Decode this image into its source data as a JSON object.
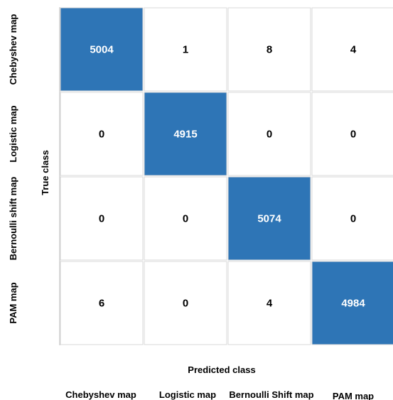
{
  "chart_data": {
    "type": "heatmap",
    "title": "",
    "xlabel": "Predicted class",
    "ylabel": "True class",
    "row_labels": [
      "Chebyshev map",
      "Logistic map",
      "Bernoulli shift map",
      "PAM map"
    ],
    "col_labels": [
      "Chebyshev map",
      "Logistic map",
      "Bernoulli Shift map",
      "PAM map"
    ],
    "values": [
      [
        5004,
        1,
        8,
        4
      ],
      [
        0,
        4915,
        0,
        0
      ],
      [
        0,
        0,
        5074,
        0
      ],
      [
        6,
        0,
        4,
        4984
      ]
    ],
    "colors": {
      "high": "#2e75b6",
      "low": "#ffffff",
      "text_on_high": "#ffffff",
      "text_on_low": "#000000",
      "grid": "#d9d9d9"
    }
  }
}
